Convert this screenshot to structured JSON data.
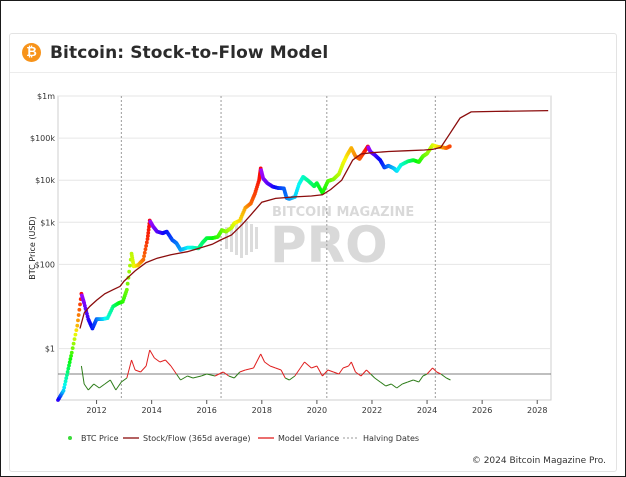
{
  "header": {
    "logo_glyph": "₿",
    "title": "Bitcoin: Stock-to-Flow Model"
  },
  "watermark": {
    "small": "BITCOIN MAGAZINE",
    "big": "PRO"
  },
  "footer": {
    "copyright": "© 2024 Bitcoin Magazine Pro."
  },
  "colors": {
    "stock_flow": "#8b0d0d",
    "variance_above": "#e02020",
    "variance_below": "#2e7d1a",
    "halving": "#9a9a9a",
    "grid": "#e6e6e6"
  },
  "chart_data": {
    "type": "line",
    "title": "Bitcoin: Stock-to-Flow Model",
    "xlabel": "",
    "ylabel": "BTC Price (USD)",
    "y_scale": "log",
    "xlim": [
      2010.6,
      2028.5
    ],
    "ylim": [
      0.06,
      1000000
    ],
    "x_ticks": [
      2012,
      2014,
      2016,
      2018,
      2020,
      2022,
      2024,
      2026,
      2028
    ],
    "y_ticks": [
      {
        "value": 1,
        "label": "$1"
      },
      {
        "value": 100,
        "label": "$100"
      },
      {
        "value": 1000,
        "label": "$1k"
      },
      {
        "value": 10000,
        "label": "$10k"
      },
      {
        "value": 100000,
        "label": "$100k"
      },
      {
        "value": 1000000,
        "label": "$1m"
      }
    ],
    "grid": true,
    "legend_position": "bottom-left",
    "legend": [
      {
        "name": "BTC Price",
        "style": "dot"
      },
      {
        "name": "Stock/Flow (365d average)",
        "style": "line"
      },
      {
        "name": "Model Variance",
        "style": "line"
      },
      {
        "name": "Halving Dates",
        "style": "dotted"
      }
    ],
    "halving_dates": [
      2012.9,
      2016.52,
      2020.36,
      2024.3
    ],
    "series": [
      {
        "name": "BTC Price",
        "points": [
          [
            2010.6,
            0.06
          ],
          [
            2010.8,
            0.1
          ],
          [
            2010.95,
            0.28
          ],
          [
            2011.1,
            0.8
          ],
          [
            2011.3,
            3.5
          ],
          [
            2011.45,
            20
          ],
          [
            2011.55,
            12
          ],
          [
            2011.7,
            5
          ],
          [
            2011.85,
            3
          ],
          [
            2012.0,
            5
          ],
          [
            2012.2,
            5
          ],
          [
            2012.4,
            5.3
          ],
          [
            2012.6,
            10
          ],
          [
            2012.8,
            12
          ],
          [
            2012.95,
            13
          ],
          [
            2013.1,
            25
          ],
          [
            2013.27,
            180
          ],
          [
            2013.35,
            90
          ],
          [
            2013.5,
            95
          ],
          [
            2013.7,
            130
          ],
          [
            2013.85,
            400
          ],
          [
            2013.93,
            1100
          ],
          [
            2014.05,
            800
          ],
          [
            2014.2,
            600
          ],
          [
            2014.4,
            550
          ],
          [
            2014.55,
            600
          ],
          [
            2014.75,
            380
          ],
          [
            2014.9,
            320
          ],
          [
            2015.05,
            220
          ],
          [
            2015.3,
            250
          ],
          [
            2015.5,
            250
          ],
          [
            2015.7,
            240
          ],
          [
            2015.85,
            330
          ],
          [
            2016.0,
            420
          ],
          [
            2016.2,
            420
          ],
          [
            2016.4,
            450
          ],
          [
            2016.55,
            650
          ],
          [
            2016.7,
            600
          ],
          [
            2016.9,
            740
          ],
          [
            2017.0,
            950
          ],
          [
            2017.2,
            1100
          ],
          [
            2017.4,
            2200
          ],
          [
            2017.6,
            2800
          ],
          [
            2017.75,
            4800
          ],
          [
            2017.9,
            10000
          ],
          [
            2017.96,
            19000
          ],
          [
            2018.05,
            11000
          ],
          [
            2018.2,
            8500
          ],
          [
            2018.4,
            7000
          ],
          [
            2018.6,
            6500
          ],
          [
            2018.8,
            6400
          ],
          [
            2018.9,
            3800
          ],
          [
            2019.0,
            3600
          ],
          [
            2019.2,
            4000
          ],
          [
            2019.35,
            8000
          ],
          [
            2019.5,
            12000
          ],
          [
            2019.7,
            9500
          ],
          [
            2019.9,
            7200
          ],
          [
            2020.0,
            8500
          ],
          [
            2020.2,
            5000
          ],
          [
            2020.4,
            9500
          ],
          [
            2020.6,
            10500
          ],
          [
            2020.8,
            14000
          ],
          [
            2020.95,
            25000
          ],
          [
            2021.1,
            40000
          ],
          [
            2021.25,
            58000
          ],
          [
            2021.4,
            37000
          ],
          [
            2021.55,
            32000
          ],
          [
            2021.7,
            45000
          ],
          [
            2021.85,
            63000
          ],
          [
            2021.95,
            47000
          ],
          [
            2022.1,
            40000
          ],
          [
            2022.3,
            30000
          ],
          [
            2022.45,
            20000
          ],
          [
            2022.6,
            22000
          ],
          [
            2022.8,
            19000
          ],
          [
            2022.9,
            16500
          ],
          [
            2023.05,
            23000
          ],
          [
            2023.3,
            28000
          ],
          [
            2023.5,
            30000
          ],
          [
            2023.7,
            27000
          ],
          [
            2023.85,
            37000
          ],
          [
            2024.0,
            43000
          ],
          [
            2024.2,
            68000
          ],
          [
            2024.35,
            63000
          ],
          [
            2024.55,
            60000
          ],
          [
            2024.7,
            58000
          ],
          [
            2024.85,
            65000
          ]
        ]
      },
      {
        "name": "Stock/Flow (365d average)",
        "points": [
          [
            2011.4,
            3
          ],
          [
            2011.55,
            7
          ],
          [
            2011.75,
            10
          ],
          [
            2012.0,
            14
          ],
          [
            2012.3,
            20
          ],
          [
            2012.6,
            25
          ],
          [
            2012.85,
            30
          ],
          [
            2013.0,
            40
          ],
          [
            2013.4,
            70
          ],
          [
            2013.8,
            110
          ],
          [
            2014.2,
            140
          ],
          [
            2014.7,
            170
          ],
          [
            2015.3,
            200
          ],
          [
            2015.8,
            250
          ],
          [
            2016.2,
            300
          ],
          [
            2016.5,
            380
          ],
          [
            2016.9,
            500
          ],
          [
            2017.3,
            900
          ],
          [
            2017.6,
            1500
          ],
          [
            2018.0,
            3000
          ],
          [
            2018.5,
            3700
          ],
          [
            2019.2,
            4000
          ],
          [
            2019.8,
            4200
          ],
          [
            2020.2,
            4500
          ],
          [
            2020.5,
            6000
          ],
          [
            2020.9,
            10000
          ],
          [
            2021.3,
            30000
          ],
          [
            2021.6,
            42000
          ],
          [
            2022.0,
            45000
          ],
          [
            2022.6,
            48000
          ],
          [
            2023.2,
            50000
          ],
          [
            2023.9,
            52000
          ],
          [
            2024.2,
            54000
          ],
          [
            2024.5,
            60000
          ],
          [
            2024.8,
            120000
          ],
          [
            2025.2,
            300000
          ],
          [
            2025.6,
            420000
          ],
          [
            2026.5,
            430000
          ],
          [
            2027.5,
            440000
          ],
          [
            2028.4,
            450000
          ]
        ]
      },
      {
        "name": "Model Variance",
        "points": [
          [
            2011.45,
            4
          ],
          [
            2011.55,
            -5
          ],
          [
            2011.7,
            -8
          ],
          [
            2011.9,
            -5
          ],
          [
            2012.1,
            -7
          ],
          [
            2012.3,
            -5
          ],
          [
            2012.5,
            -3
          ],
          [
            2012.7,
            -8
          ],
          [
            2012.9,
            -4
          ],
          [
            2013.1,
            -2
          ],
          [
            2013.27,
            7
          ],
          [
            2013.4,
            2
          ],
          [
            2013.6,
            1
          ],
          [
            2013.8,
            4
          ],
          [
            2013.93,
            12
          ],
          [
            2014.1,
            8
          ],
          [
            2014.3,
            6
          ],
          [
            2014.5,
            7
          ],
          [
            2014.7,
            4
          ],
          [
            2014.9,
            0
          ],
          [
            2015.05,
            -3
          ],
          [
            2015.3,
            -1
          ],
          [
            2015.5,
            -2
          ],
          [
            2015.8,
            -1
          ],
          [
            2016.0,
            0
          ],
          [
            2016.3,
            -1
          ],
          [
            2016.6,
            1
          ],
          [
            2016.8,
            -1
          ],
          [
            2017.0,
            -2
          ],
          [
            2017.2,
            1
          ],
          [
            2017.4,
            2
          ],
          [
            2017.7,
            3
          ],
          [
            2017.96,
            10
          ],
          [
            2018.1,
            6
          ],
          [
            2018.3,
            4
          ],
          [
            2018.5,
            3
          ],
          [
            2018.7,
            2
          ],
          [
            2018.85,
            -2
          ],
          [
            2019.0,
            -3
          ],
          [
            2019.2,
            -1
          ],
          [
            2019.4,
            3
          ],
          [
            2019.55,
            6
          ],
          [
            2019.8,
            3
          ],
          [
            2020.0,
            4
          ],
          [
            2020.2,
            -1
          ],
          [
            2020.4,
            2
          ],
          [
            2020.6,
            1
          ],
          [
            2020.8,
            0
          ],
          [
            2020.95,
            3
          ],
          [
            2021.15,
            4
          ],
          [
            2021.25,
            6
          ],
          [
            2021.4,
            1
          ],
          [
            2021.6,
            -1
          ],
          [
            2021.8,
            2
          ],
          [
            2021.95,
            0
          ],
          [
            2022.1,
            -2
          ],
          [
            2022.3,
            -4
          ],
          [
            2022.5,
            -6
          ],
          [
            2022.7,
            -5
          ],
          [
            2022.9,
            -7
          ],
          [
            2023.1,
            -5
          ],
          [
            2023.3,
            -4
          ],
          [
            2023.5,
            -3
          ],
          [
            2023.7,
            -4
          ],
          [
            2023.85,
            -1
          ],
          [
            2024.0,
            0
          ],
          [
            2024.2,
            3
          ],
          [
            2024.35,
            1
          ],
          [
            2024.5,
            0
          ],
          [
            2024.7,
            -2
          ],
          [
            2024.85,
            -3
          ]
        ]
      }
    ]
  }
}
